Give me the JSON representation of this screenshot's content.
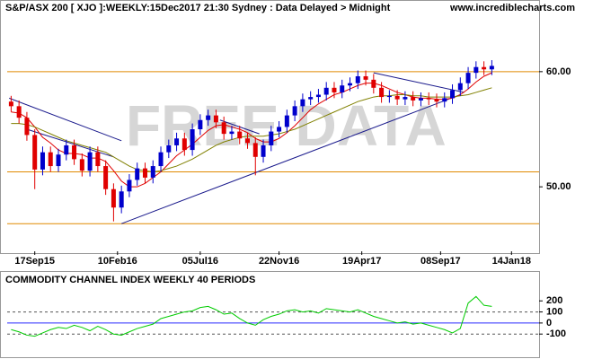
{
  "chart_data": [
    {
      "type": "candlestick",
      "title": "S&P/ASX 200 [ XJO ]:WEEKLY:15Dec2017 21:30 Sydney : Data Delayed > Midnight",
      "source": "www.incrediblecharts.com",
      "watermark": "FREE DATA",
      "x": [
        0,
        2,
        4,
        6,
        8,
        10,
        12,
        14,
        16,
        18,
        20,
        22,
        24,
        26,
        28,
        30,
        32,
        34,
        36,
        38,
        40,
        42,
        44,
        46,
        48,
        50,
        52,
        54,
        56,
        58,
        60,
        62,
        64,
        66,
        68,
        70,
        72,
        74,
        76,
        78,
        80,
        82,
        84,
        86,
        88,
        90,
        92,
        94,
        96,
        98,
        100,
        102,
        104,
        106,
        108,
        110,
        112,
        114,
        116,
        118,
        120,
        122
      ],
      "open": [
        57.4,
        57.0,
        56.0,
        54.5,
        51.5,
        53.0,
        51.8,
        52.8,
        53.6,
        52.4,
        51.4,
        53.0,
        51.8,
        49.8,
        48.2,
        49.6,
        50.6,
        51.6,
        50.8,
        51.8,
        53.0,
        53.6,
        54.2,
        53.2,
        55.0,
        55.8,
        56.2,
        55.6,
        54.6,
        54.8,
        54.2,
        53.8,
        52.6,
        53.6,
        54.8,
        55.2,
        56.2,
        57.0,
        57.6,
        57.8,
        58.0,
        58.6,
        58.2,
        58.8,
        59.0,
        59.6,
        59.3,
        58.6,
        57.8,
        57.9,
        57.6,
        57.8,
        57.5,
        57.7,
        57.6,
        57.4,
        57.7,
        58.4,
        59.0,
        59.9,
        60.4,
        60.2
      ],
      "high": [
        57.9,
        57.5,
        56.5,
        55.0,
        53.5,
        53.5,
        53.3,
        54.1,
        54.1,
        52.9,
        53.5,
        53.5,
        52.3,
        50.3,
        50.1,
        51.1,
        52.1,
        52.1,
        52.3,
        53.5,
        54.1,
        54.7,
        54.7,
        55.5,
        56.3,
        56.7,
        56.7,
        56.1,
        55.3,
        55.3,
        54.7,
        54.3,
        54.1,
        55.3,
        55.7,
        56.7,
        57.5,
        58.1,
        58.3,
        58.5,
        59.1,
        59.1,
        59.3,
        59.5,
        60.1,
        60.1,
        59.8,
        59.1,
        58.4,
        58.4,
        58.3,
        58.3,
        58.2,
        58.2,
        58.1,
        58.2,
        58.9,
        59.5,
        60.4,
        60.9,
        60.9,
        61.0
      ],
      "low": [
        56.5,
        55.5,
        54.0,
        49.8,
        51.0,
        51.3,
        51.3,
        52.3,
        51.9,
        50.9,
        50.9,
        51.3,
        49.3,
        47.0,
        47.7,
        49.1,
        50.1,
        50.3,
        50.3,
        51.3,
        52.5,
        53.1,
        52.7,
        52.7,
        54.5,
        55.3,
        55.1,
        54.1,
        54.1,
        53.7,
        53.3,
        51.0,
        52.1,
        53.1,
        54.3,
        54.7,
        55.7,
        56.5,
        57.1,
        57.3,
        57.5,
        57.7,
        57.7,
        58.3,
        58.5,
        58.8,
        58.1,
        57.3,
        57.3,
        57.1,
        57.1,
        57.0,
        57.0,
        57.1,
        56.9,
        56.9,
        57.2,
        57.9,
        58.5,
        59.4,
        59.7,
        59.7
      ],
      "close": [
        57.0,
        56.0,
        54.5,
        51.5,
        53.0,
        51.8,
        52.8,
        53.6,
        52.4,
        51.4,
        53.0,
        51.8,
        49.8,
        48.2,
        49.6,
        50.6,
        51.6,
        50.8,
        51.8,
        53.0,
        53.6,
        54.2,
        53.2,
        55.0,
        55.8,
        56.2,
        55.6,
        54.6,
        54.8,
        54.2,
        53.8,
        52.6,
        53.6,
        54.8,
        55.2,
        56.2,
        57.0,
        57.6,
        57.8,
        58.0,
        58.6,
        58.2,
        58.8,
        59.0,
        59.6,
        59.3,
        58.6,
        57.8,
        57.9,
        57.6,
        57.8,
        57.5,
        57.7,
        57.6,
        57.4,
        57.7,
        58.4,
        59.0,
        59.9,
        60.4,
        60.2,
        60.5
      ],
      "up_color": "#0000cc",
      "down_color": "#e00000",
      "series": [
        {
          "color": "#e00000",
          "values": [
            56.5,
            56.4,
            56.0,
            55.2,
            54.3,
            53.8,
            53.2,
            52.9,
            52.9,
            52.8,
            52.5,
            52.5,
            52.2,
            51.4,
            50.5,
            50.0,
            50.0,
            50.3,
            50.8,
            51.3,
            52.0,
            52.7,
            53.2,
            53.7,
            54.3,
            54.9,
            55.3,
            55.4,
            55.2,
            55.0,
            54.7,
            54.2,
            53.9,
            53.9,
            54.2,
            54.7,
            55.3,
            56.0,
            56.7,
            57.2,
            57.6,
            58.0,
            58.2,
            58.5,
            58.8,
            59.0,
            59.0,
            58.8,
            58.5,
            58.2,
            58.0,
            57.8,
            57.7,
            57.7,
            57.6,
            57.6,
            57.7,
            58.0,
            58.5,
            59.1,
            59.6,
            59.9
          ]
        },
        {
          "color": "#808000",
          "values": [
            55.5,
            55.5,
            55.4,
            55.2,
            54.9,
            54.6,
            54.3,
            54.0,
            53.8,
            53.6,
            53.4,
            53.2,
            53.0,
            52.6,
            52.2,
            51.8,
            51.5,
            51.4,
            51.3,
            51.4,
            51.6,
            51.8,
            52.1,
            52.4,
            52.8,
            53.2,
            53.6,
            53.9,
            54.1,
            54.3,
            54.4,
            54.4,
            54.4,
            54.5,
            54.6,
            54.8,
            55.0,
            55.3,
            55.6,
            55.9,
            56.2,
            56.5,
            56.8,
            57.1,
            57.4,
            57.6,
            57.8,
            57.9,
            57.9,
            58.0,
            58.0,
            57.9,
            57.9,
            57.8,
            57.8,
            57.8,
            57.8,
            57.9,
            58.0,
            58.2,
            58.4,
            58.6
          ]
        }
      ],
      "hlines": [
        60,
        51.3,
        46.8
      ],
      "hline_color": "#e08a00",
      "trendlines": [
        [
          -0.5,
          57.7,
          28,
          54.0
        ],
        [
          4,
          55.0,
          26,
          52.6
        ],
        [
          53,
          55.8,
          63,
          54.6
        ],
        [
          28,
          46.8,
          114,
          58.0
        ],
        [
          92,
          59.9,
          115,
          58.2
        ]
      ],
      "trend_color": "#1a1a8c",
      "xlim": [
        -1,
        134
      ],
      "xticks": [
        {
          "value": 6,
          "label": "17Sep15"
        },
        {
          "value": 27,
          "label": "10Feb16"
        },
        {
          "value": 48,
          "label": "05Jul16"
        },
        {
          "value": 68,
          "label": "22Nov16"
        },
        {
          "value": 89,
          "label": "19Apr17"
        },
        {
          "value": 109,
          "label": "08Sep17"
        },
        {
          "value": 127,
          "label": "14Jan18"
        }
      ],
      "ylim": [
        44.4,
        65.6
      ],
      "yticks": [
        {
          "value": 60,
          "label": "60.00"
        },
        {
          "value": 50,
          "label": "50.00"
        }
      ]
    },
    {
      "type": "line",
      "title": "COMMODITY CHANNEL INDEX WEEKLY 40 PERIODS",
      "x": [
        0,
        2,
        4,
        6,
        8,
        10,
        12,
        14,
        16,
        18,
        20,
        22,
        24,
        26,
        28,
        30,
        32,
        34,
        36,
        38,
        40,
        42,
        44,
        46,
        48,
        50,
        52,
        54,
        56,
        58,
        60,
        62,
        64,
        66,
        68,
        70,
        72,
        74,
        76,
        78,
        80,
        82,
        84,
        86,
        88,
        90,
        92,
        94,
        96,
        98,
        100,
        102,
        104,
        106,
        108,
        110,
        112,
        114,
        116,
        118,
        120,
        122
      ],
      "values": [
        -60,
        -80,
        -110,
        -120,
        -90,
        -60,
        -40,
        -50,
        -20,
        -40,
        -70,
        -30,
        -60,
        -100,
        -110,
        -80,
        -50,
        -30,
        -10,
        40,
        60,
        80,
        100,
        110,
        140,
        150,
        120,
        80,
        90,
        40,
        0,
        -20,
        30,
        60,
        80,
        110,
        120,
        100,
        110,
        90,
        130,
        120,
        110,
        100,
        120,
        90,
        60,
        40,
        20,
        0,
        10,
        -10,
        0,
        -20,
        -40,
        -60,
        -90,
        -50,
        180,
        240,
        160,
        150
      ],
      "color": "#00cc00",
      "xlim": [
        -1,
        134
      ],
      "ylim": [
        -285,
        340
      ],
      "yticks": [
        200,
        100,
        0,
        -100
      ],
      "dashed_levels": [
        100,
        -100
      ],
      "zero_level": 0
    }
  ]
}
